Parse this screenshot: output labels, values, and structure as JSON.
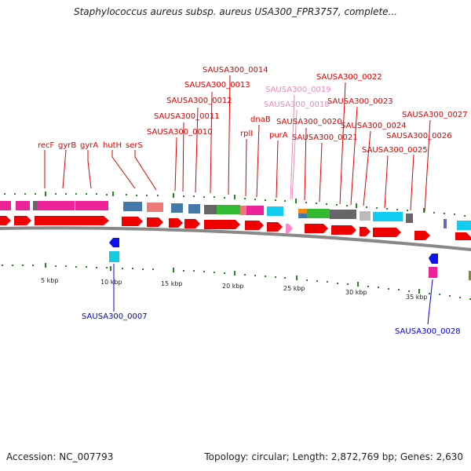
{
  "header": {
    "title": "Staphylococcus aureus subsp. aureus USA300_FPR3757, complete..."
  },
  "footer": {
    "accession": "Accession: NC_007793",
    "summary": "Topology: circular; Length: 2,872,769 bp; Genes: 2,630"
  },
  "colors": {
    "cds_red": "#ee0000",
    "locus_red": "#dd0000",
    "locus_pink": "#ee88bb",
    "locus_blue": "#0000cc",
    "backbone": "#888888",
    "tick_green": "#228822"
  },
  "scale": {
    "unit": "kbp",
    "ticks": [
      {
        "label": "5 kbp"
      },
      {
        "label": "10 kbp"
      },
      {
        "label": "15 kbp"
      },
      {
        "label": "20 kbp"
      },
      {
        "label": "25 kbp"
      },
      {
        "label": "30 kbp"
      },
      {
        "label": "35 kbp"
      }
    ]
  },
  "top_labels": [
    {
      "text": "SAUSA300_0014",
      "color": "red"
    },
    {
      "text": "SAUSA300_0013",
      "color": "red"
    },
    {
      "text": "SAUSA300_0012",
      "color": "red"
    },
    {
      "text": "SAUSA300_0011",
      "color": "red"
    },
    {
      "text": "SAUSA300_0010",
      "color": "red"
    },
    {
      "text": "SAUSA300_0019",
      "color": "pink"
    },
    {
      "text": "SAUSA300_0018",
      "color": "pink"
    },
    {
      "text": "SAUSA300_0022",
      "color": "red"
    },
    {
      "text": "SAUSA300_0023",
      "color": "red"
    },
    {
      "text": "SAUSA300_0020",
      "color": "red"
    },
    {
      "text": "SAUSA300_0024",
      "color": "red"
    },
    {
      "text": "SAUSA300_0021",
      "color": "red"
    },
    {
      "text": "SAUSA300_0027",
      "color": "red"
    },
    {
      "text": "SAUSA300_0026",
      "color": "red"
    },
    {
      "text": "SAUSA300_0025",
      "color": "red"
    },
    {
      "text": "dnaB",
      "color": "red"
    },
    {
      "text": "rplI",
      "color": "red"
    },
    {
      "text": "purA",
      "color": "red"
    },
    {
      "text": "recF",
      "color": "red"
    },
    {
      "text": "gyrB",
      "color": "red"
    },
    {
      "text": "gyrA",
      "color": "red"
    },
    {
      "text": "hutH",
      "color": "red"
    },
    {
      "text": "serS",
      "color": "red"
    }
  ],
  "bottom_labels": [
    {
      "text": "SAUSA300_0007",
      "color": "blue"
    },
    {
      "text": "SAUSA300_0028",
      "color": "blue"
    }
  ]
}
